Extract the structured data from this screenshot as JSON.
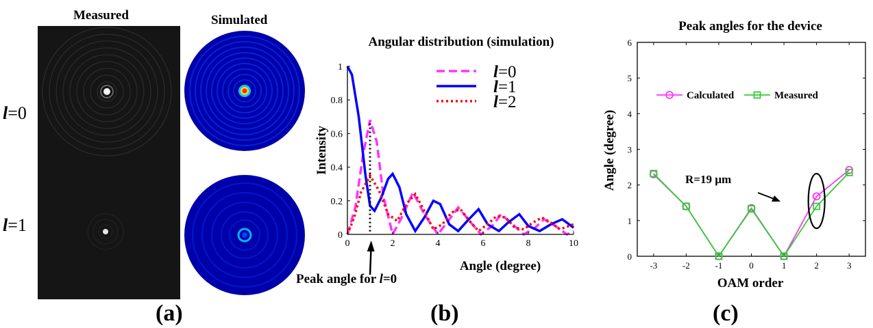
{
  "panel_a": {
    "measured_title": "Measured",
    "simulated_title": "Simulated",
    "rows": [
      {
        "l_symbol": "l",
        "l_value": "=0"
      },
      {
        "l_symbol": "l",
        "l_value": "=1"
      }
    ],
    "label": "(a)"
  },
  "panel_b": {
    "label": "(b)",
    "annotation": {
      "text": "Peak angle for ",
      "l_symbol": "l",
      "l_value": "=0"
    }
  },
  "panel_c": {
    "label": "(c)",
    "annotation": "R=19 µm"
  },
  "chart_data": [
    {
      "type": "line",
      "title": "Angular distribution (simulation)",
      "xlabel": "Angle (degree)",
      "ylabel": "Intensity",
      "xlim": [
        0,
        10
      ],
      "ylim": [
        0,
        1
      ],
      "xticks": [
        "0",
        "2",
        "4",
        "6",
        "8",
        "10"
      ],
      "yticks": [
        "0",
        "0.2",
        "0.4",
        "0.6",
        "0.8",
        "1"
      ],
      "legend_position": "top-right",
      "series": [
        {
          "name": "l=0",
          "l_symbol": "l",
          "l_value": "=0",
          "style": "dashed",
          "color": "#ff33ff",
          "points": [
            [
              0,
              0
            ],
            [
              0.35,
              0.16
            ],
            [
              0.7,
              0.48
            ],
            [
              1.0,
              0.68
            ],
            [
              1.3,
              0.55
            ],
            [
              1.6,
              0.22
            ],
            [
              2.0,
              0
            ],
            [
              2.4,
              0.1
            ],
            [
              2.9,
              0.25
            ],
            [
              3.4,
              0.12
            ],
            [
              4.0,
              0
            ],
            [
              4.4,
              0.07
            ],
            [
              4.9,
              0.16
            ],
            [
              5.4,
              0.08
            ],
            [
              5.9,
              0
            ],
            [
              6.4,
              0.05
            ],
            [
              6.8,
              0.12
            ],
            [
              7.3,
              0.06
            ],
            [
              7.8,
              0
            ],
            [
              8.3,
              0.04
            ],
            [
              8.7,
              0.09
            ],
            [
              9.2,
              0.05
            ],
            [
              9.7,
              0
            ],
            [
              10,
              0.02
            ]
          ]
        },
        {
          "name": "l=1",
          "l_symbol": "l",
          "l_value": "=1",
          "style": "solid",
          "color": "#0000ff",
          "points": [
            [
              0,
              1.0
            ],
            [
              0.2,
              0.95
            ],
            [
              0.5,
              0.7
            ],
            [
              0.8,
              0.35
            ],
            [
              1.0,
              0.17
            ],
            [
              1.2,
              0.14
            ],
            [
              1.5,
              0.22
            ],
            [
              1.8,
              0.33
            ],
            [
              2.0,
              0.36
            ],
            [
              2.3,
              0.28
            ],
            [
              2.6,
              0.12
            ],
            [
              3.0,
              0.02
            ],
            [
              3.4,
              0.1
            ],
            [
              3.8,
              0.2
            ],
            [
              4.1,
              0.18
            ],
            [
              4.5,
              0.06
            ],
            [
              4.9,
              0.02
            ],
            [
              5.3,
              0.08
            ],
            [
              5.8,
              0.15
            ],
            [
              6.2,
              0.06
            ],
            [
              6.7,
              0.02
            ],
            [
              7.1,
              0.07
            ],
            [
              7.6,
              0.12
            ],
            [
              8.0,
              0.05
            ],
            [
              8.5,
              0.02
            ],
            [
              9.0,
              0.06
            ],
            [
              9.5,
              0.09
            ],
            [
              9.8,
              0.06
            ],
            [
              10,
              0.04
            ]
          ]
        },
        {
          "name": "l=2",
          "l_symbol": "l",
          "l_value": "=2",
          "style": "dotted",
          "color": "#ff0000",
          "points": [
            [
              0,
              0
            ],
            [
              0.3,
              0.1
            ],
            [
              0.6,
              0.25
            ],
            [
              1.0,
              0.35
            ],
            [
              1.4,
              0.26
            ],
            [
              1.8,
              0.12
            ],
            [
              2.2,
              0.08
            ],
            [
              2.6,
              0.18
            ],
            [
              3.0,
              0.24
            ],
            [
              3.4,
              0.14
            ],
            [
              3.8,
              0.03
            ],
            [
              4.2,
              0.06
            ],
            [
              4.6,
              0.13
            ],
            [
              5.0,
              0.15
            ],
            [
              5.4,
              0.08
            ],
            [
              5.8,
              0.02
            ],
            [
              6.2,
              0.06
            ],
            [
              6.6,
              0.11
            ],
            [
              7.0,
              0.1
            ],
            [
              7.4,
              0.04
            ],
            [
              7.8,
              0.03
            ],
            [
              8.2,
              0.07
            ],
            [
              8.6,
              0.1
            ],
            [
              9.0,
              0.07
            ],
            [
              9.4,
              0.03
            ],
            [
              9.8,
              0.05
            ],
            [
              10,
              0.06
            ]
          ]
        }
      ]
    },
    {
      "type": "line",
      "title": "Peak angles for the device",
      "xlabel": "OAM order",
      "ylabel": "Angle (degree)",
      "xlim": [
        -3.5,
        3.5
      ],
      "ylim": [
        0,
        6
      ],
      "categories": [
        "-3",
        "-2",
        "-1",
        "0",
        "1",
        "2",
        "3"
      ],
      "yticks": [
        "0",
        "1",
        "2",
        "3",
        "4",
        "5",
        "6"
      ],
      "legend_position": "top",
      "series": [
        {
          "name": "Calculated",
          "color": "#ff33ff",
          "marker": "circle",
          "x": [
            -3,
            -2,
            -1,
            0,
            1,
            2,
            3
          ],
          "values": [
            2.3,
            1.4,
            0,
            1.35,
            0,
            1.68,
            2.42
          ]
        },
        {
          "name": "Measured",
          "color": "#33cc33",
          "marker": "square",
          "x": [
            -3,
            -2,
            -1,
            0,
            1,
            2,
            3
          ],
          "values": [
            2.32,
            1.4,
            0,
            1.33,
            0,
            1.4,
            2.35
          ]
        }
      ]
    }
  ]
}
